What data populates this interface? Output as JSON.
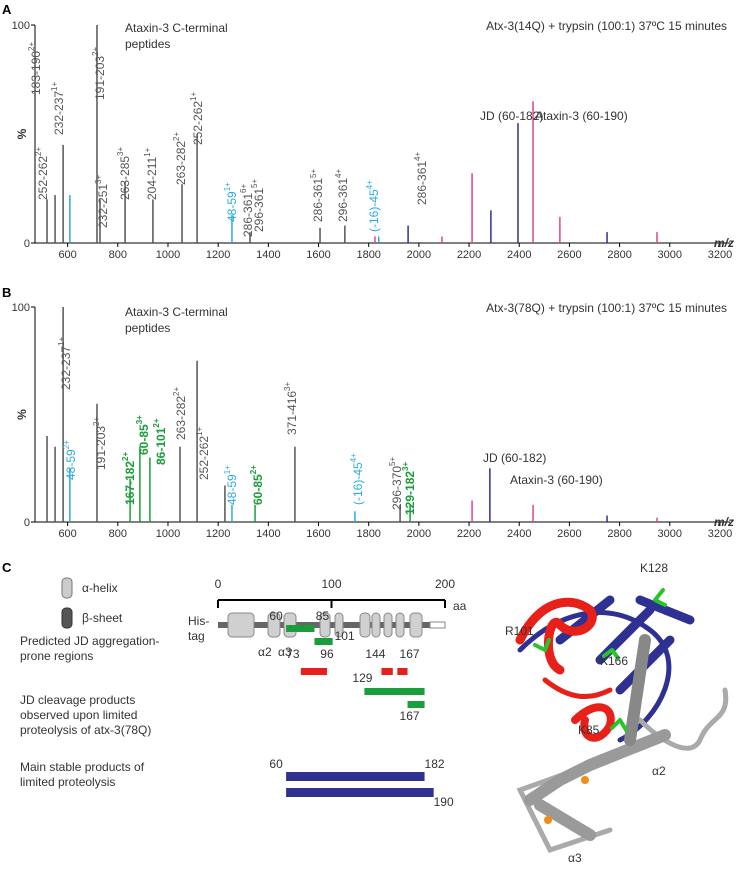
{
  "chart_data": [
    {
      "type": "spectrum",
      "panel": "A",
      "title": "Atx-3(14Q) + trypsin (100:1) 37ºC 15 minutes",
      "y_label": "%",
      "x_label": "m/z",
      "xlim": [
        470,
        3240
      ],
      "ylim": [
        0,
        100
      ],
      "xticks": [
        600,
        800,
        1000,
        1200,
        1400,
        1600,
        1800,
        2000,
        2200,
        2400,
        2600,
        2800,
        3000,
        3200
      ],
      "yticks": [
        0,
        100
      ],
      "series": [
        {
          "color": "#555555",
          "x": [
            518,
            550,
            582,
            717,
            729,
            829,
            940,
            1056,
            1116,
            1327,
            1606,
            1705
          ],
          "values": [
            20,
            22,
            45,
            100,
            20,
            28,
            20,
            27,
            50,
            5,
            7,
            8
          ]
        },
        {
          "color": "#29abe2",
          "x": [
            609,
            1255,
            1840
          ],
          "values": [
            22,
            13,
            3
          ]
        },
        {
          "color": "#2e3192",
          "x": [
            1957,
            2287,
            2395,
            2750
          ],
          "values": [
            8,
            15,
            55,
            5
          ]
        },
        {
          "color": "#e0448f",
          "x": [
            1825,
            2092,
            2212,
            2455,
            2562,
            2949
          ],
          "values": [
            3,
            3,
            32,
            65,
            12,
            5
          ]
        }
      ],
      "annotations": [
        {
          "text": "183-190",
          "charge": "2+",
          "color": "#555555"
        },
        {
          "text": "232-237",
          "charge": "1+",
          "color": "#555555"
        },
        {
          "text": "252-262",
          "charge": "2+",
          "color": "#555555"
        },
        {
          "text": "191-203",
          "charge": "2+",
          "color": "#555555"
        },
        {
          "text": "232-251",
          "charge": "3+",
          "color": "#555555"
        },
        {
          "text": "263-285",
          "charge": "3+",
          "color": "#555555"
        },
        {
          "text": "204-211",
          "charge": "1+",
          "color": "#555555"
        },
        {
          "text": "263-282",
          "charge": "2+",
          "color": "#555555"
        },
        {
          "text": "252-262",
          "charge": "1+",
          "color": "#555555"
        },
        {
          "text": "48-59",
          "charge": "1+",
          "color": "#29abe2"
        },
        {
          "text": "286-361",
          "charge": "6+",
          "color": "#555555"
        },
        {
          "text": "296-361",
          "charge": "5+",
          "color": "#555555"
        },
        {
          "text": "286-361",
          "charge": "5+",
          "color": "#555555"
        },
        {
          "text": "296-361",
          "charge": "4+",
          "color": "#555555"
        },
        {
          "text": "(-16)-45",
          "charge": "4+",
          "color": "#29abe2"
        },
        {
          "text": "286-361",
          "charge": "4+",
          "color": "#555555"
        }
      ],
      "notes": [
        {
          "lines": [
            "Ataxin-3 C-terminal",
            "peptides"
          ],
          "color": "#777777"
        },
        {
          "lines": [
            "JD (60-182)"
          ],
          "color": "#2e3192"
        },
        {
          "lines": [
            "Ataxin-3 (60-190)"
          ],
          "color": "#e0448f"
        }
      ]
    },
    {
      "type": "spectrum",
      "panel": "B",
      "title": "Atx-3(78Q) + trypsin (100:1) 37ºC 15 minutes",
      "y_label": "%",
      "x_label": "m/z",
      "xlim": [
        470,
        3240
      ],
      "ylim": [
        0,
        100
      ],
      "xticks": [
        600,
        800,
        1000,
        1200,
        1400,
        1600,
        1800,
        2000,
        2200,
        2400,
        2600,
        2800,
        3000,
        3200
      ],
      "yticks": [
        0,
        100
      ],
      "series": [
        {
          "color": "#555555",
          "x": [
            518,
            550,
            582,
            717,
            1048,
            1116,
            1227,
            1506,
            1925
          ],
          "values": [
            40,
            35,
            100,
            55,
            35,
            75,
            17,
            35,
            8
          ]
        },
        {
          "color": "#1a9e3b",
          "x": [
            849,
            888,
            928,
            1347,
            1965
          ],
          "values": [
            20,
            35,
            30,
            8,
            8
          ]
        },
        {
          "color": "#29abe2",
          "x": [
            609,
            1255,
            1745
          ],
          "values": [
            25,
            8,
            5
          ]
        },
        {
          "color": "#2e3192",
          "x": [
            2283,
            2750
          ],
          "values": [
            25,
            3
          ]
        },
        {
          "color": "#e0448f",
          "x": [
            2212,
            2455,
            2949
          ],
          "values": [
            10,
            8,
            2
          ]
        }
      ],
      "annotations": [
        {
          "text": "232-237",
          "charge": "1+",
          "color": "#555555"
        },
        {
          "text": "48-59",
          "charge": "2+",
          "color": "#29abe2"
        },
        {
          "text": "191-203",
          "charge": "2+",
          "color": "#555555"
        },
        {
          "text": "167-182",
          "charge": "2+",
          "color": "#1a9e3b"
        },
        {
          "text": "60-85",
          "charge": "3+",
          "color": "#1a9e3b"
        },
        {
          "text": "86-101",
          "charge": "2+",
          "color": "#1a9e3b"
        },
        {
          "text": "263-282",
          "charge": "2+",
          "color": "#555555"
        },
        {
          "text": "252-262",
          "charge": "1+",
          "color": "#555555"
        },
        {
          "text": "48-59",
          "charge": "1+",
          "color": "#29abe2"
        },
        {
          "text": "60-85",
          "charge": "2+",
          "color": "#1a9e3b"
        },
        {
          "text": "371-416",
          "charge": "3+",
          "color": "#555555"
        },
        {
          "text": "(-16)-45",
          "charge": "4+",
          "color": "#29abe2"
        },
        {
          "text": "296-370",
          "charge": "5+",
          "color": "#555555"
        },
        {
          "text": "129-182",
          "charge": "3+",
          "color": "#1a9e3b"
        }
      ],
      "notes": [
        {
          "lines": [
            "Ataxin-3 C-terminal",
            "peptides"
          ],
          "color": "#777777"
        },
        {
          "lines": [
            "JD (60-182)"
          ],
          "color": "#2e3192"
        },
        {
          "lines": [
            "Ataxin-3 (60-190)"
          ],
          "color": "#e0448f"
        }
      ]
    }
  ],
  "diagram": {
    "panel": "C",
    "legend": [
      "α-helix",
      "β-sheet"
    ],
    "scale_ticks": [
      0,
      100,
      200
    ],
    "scale_unit": "aa",
    "his_tag": [
      "His-",
      "tag"
    ],
    "helix_labels": [
      "α2",
      "α3"
    ],
    "rows": [
      {
        "lines": [
          "Predicted JD aggregation-",
          "prone regions"
        ],
        "color": "#e8201a",
        "segments": [
          [
            73,
            96
          ],
          [
            144,
            154
          ],
          [
            158,
            167
          ]
        ]
      },
      {
        "lines": [
          "JD cleavage products",
          "observed upon limited",
          "proteolysis of atx-3(78Q)"
        ],
        "color": "#1a9e3b",
        "segments": [
          [
            60,
            85
          ],
          [
            85,
            101
          ],
          [
            129,
            182
          ],
          [
            167,
            182
          ]
        ]
      },
      {
        "lines": [
          "Main stable products of",
          "limited proteolysis"
        ],
        "color": "#2e3192",
        "segments": [
          [
            60,
            182
          ],
          [
            60,
            190
          ]
        ]
      }
    ],
    "structure_labels": [
      "K128",
      "R101",
      "K166",
      "K85",
      "α2",
      "α3"
    ]
  }
}
